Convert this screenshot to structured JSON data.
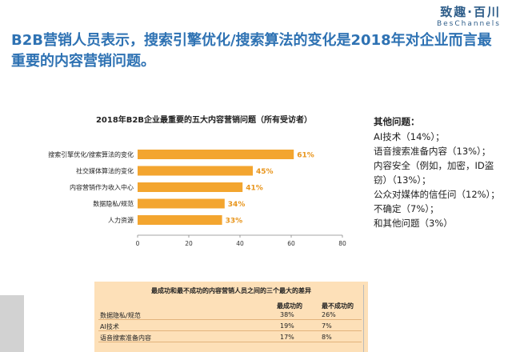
{
  "brand": {
    "name": "致趣·百川",
    "sub": "BesChannels"
  },
  "headline": "B2B营销人员表示，搜索引擎优化/搜索算法的变化是2018年对企业而言最重要的内容营销问题。",
  "chart_data": {
    "type": "bar",
    "orientation": "horizontal",
    "title": "2018年B2B企业最重要的五大内容营销问题（所有受访者）",
    "categories": [
      "搜索引擎优化/搜索算法的变化",
      "社交媒体算法的变化",
      "内容营销作为收入中心",
      "数据隐私/规范",
      "人力资源"
    ],
    "values": [
      61,
      45,
      41,
      34,
      33
    ],
    "data_labels": [
      "61%",
      "45%",
      "41%",
      "34%",
      "33%"
    ],
    "xlim": [
      0,
      80
    ],
    "xticks": [
      0,
      20,
      40,
      60,
      80
    ],
    "xtick_labels": [
      "0",
      "20",
      "40",
      "60",
      "80"
    ],
    "bar_color": "#f3a52f",
    "label_color": "#e8951c",
    "grid": false,
    "xlabel": "",
    "ylabel": ""
  },
  "side_note": {
    "title": "其他问题：",
    "lines": [
      "AI技术（14%）；",
      "语音搜索准备内容（13%）；",
      "内容安全（例如，加密，ID盗",
      "窃）（13%）；",
      "公众对媒体的信任问（12%）；",
      "不确定（7%）；",
      "和其他问题（3%）"
    ]
  },
  "comparison_table": {
    "title": "最成功和最不成功的内容营销人员之间的三个最大的差异",
    "headers": [
      "最成功的",
      "最不成功的"
    ],
    "rows": [
      {
        "label": "数据隐私/规范",
        "most": "38%",
        "least": "26%"
      },
      {
        "label": "AI技术",
        "most": "19%",
        "least": "7%"
      },
      {
        "label": "语音搜索准备内容",
        "most": "17%",
        "least": "8%"
      }
    ]
  }
}
